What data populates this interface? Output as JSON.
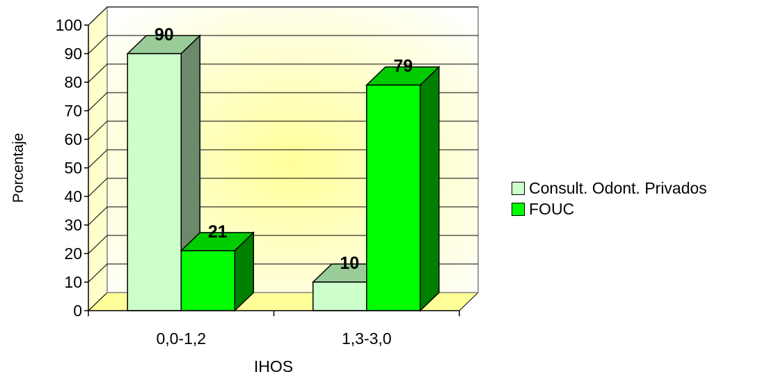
{
  "chart_data": {
    "type": "bar",
    "title": "",
    "xlabel": "IHOS",
    "ylabel": "Porcentaje",
    "categories": [
      "0,0-1,2",
      "1,3-3,0"
    ],
    "ylim": [
      0,
      100
    ],
    "yticks": [
      0,
      10,
      20,
      30,
      40,
      50,
      60,
      70,
      80,
      90,
      100
    ],
    "grid": true,
    "three_d": true,
    "legend_position": "right",
    "series": [
      {
        "name": "Consult. Odont. Privados",
        "values": [
          90,
          10
        ],
        "color": "#ccffcc"
      },
      {
        "name": "FOUC",
        "values": [
          21,
          79
        ],
        "color": "#00ff00"
      }
    ],
    "data_labels": [
      "90",
      "10",
      "21",
      "79"
    ]
  }
}
